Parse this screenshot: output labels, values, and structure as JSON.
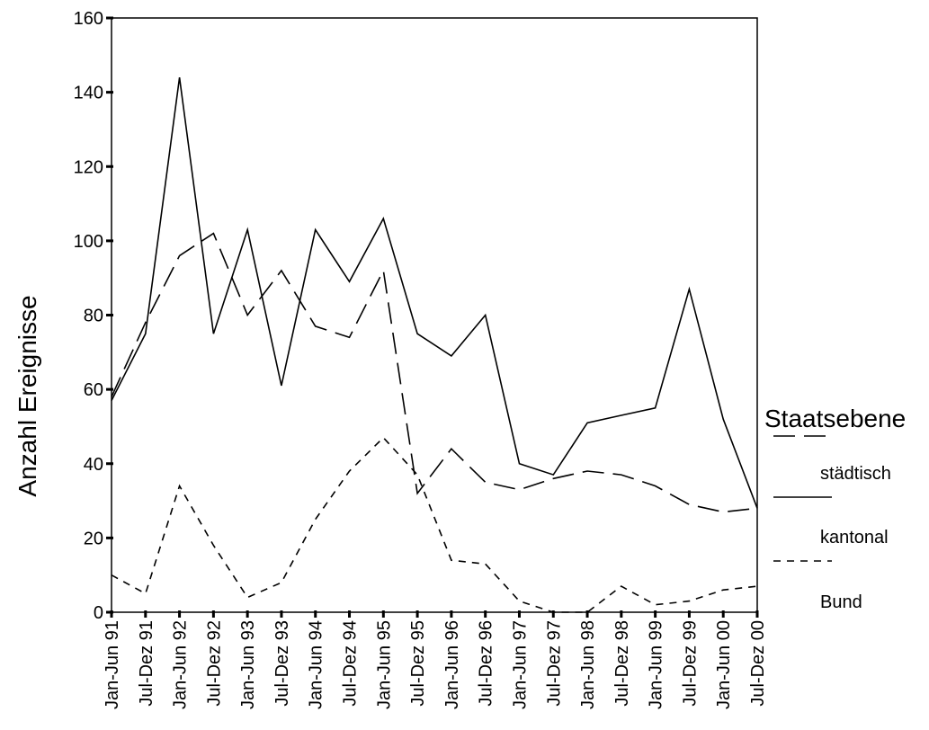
{
  "chart_data": {
    "type": "line",
    "xlabel": "",
    "ylabel": "Anzahl Ereignisse",
    "ylim": [
      0,
      160
    ],
    "yticks": [
      0,
      20,
      40,
      60,
      80,
      100,
      120,
      140,
      160
    ],
    "grid": false,
    "legend_position": "right",
    "legend_title": "Staatsebene",
    "categories": [
      "Jan-Jun 91",
      "Jul-Dez 91",
      "Jan-Jun 92",
      "Jul-Dez 92",
      "Jan-Jun 93",
      "Jul-Dez 93",
      "Jan-Jun 94",
      "Jul-Dez 94",
      "Jan-Jun 95",
      "Jul-Dez 95",
      "Jan-Jun 96",
      "Jul-Dez 96",
      "Jan-Jun 97",
      "Jul-Dez 97",
      "Jan-Jun 98",
      "Jul-Dez 98",
      "Jan-Jun 99",
      "Jul-Dez 99",
      "Jan-Jun 00",
      "Jul-Dez 00"
    ],
    "series": [
      {
        "name": "städtisch",
        "style": "long-dash",
        "values": [
          58,
          78,
          96,
          102,
          80,
          92,
          77,
          74,
          92,
          32,
          44,
          35,
          33,
          36,
          38,
          37,
          34,
          29,
          27,
          28
        ]
      },
      {
        "name": "kantonal",
        "style": "solid",
        "values": [
          57,
          75,
          144,
          75,
          103,
          61,
          103,
          89,
          106,
          75,
          69,
          80,
          40,
          37,
          51,
          53,
          55,
          87,
          52,
          28
        ]
      },
      {
        "name": "Bund",
        "style": "short-dash",
        "values": [
          10,
          5,
          34,
          18,
          4,
          8,
          25,
          38,
          47,
          37,
          14,
          13,
          3,
          0,
          0,
          7,
          2,
          3,
          6,
          7
        ]
      }
    ]
  }
}
